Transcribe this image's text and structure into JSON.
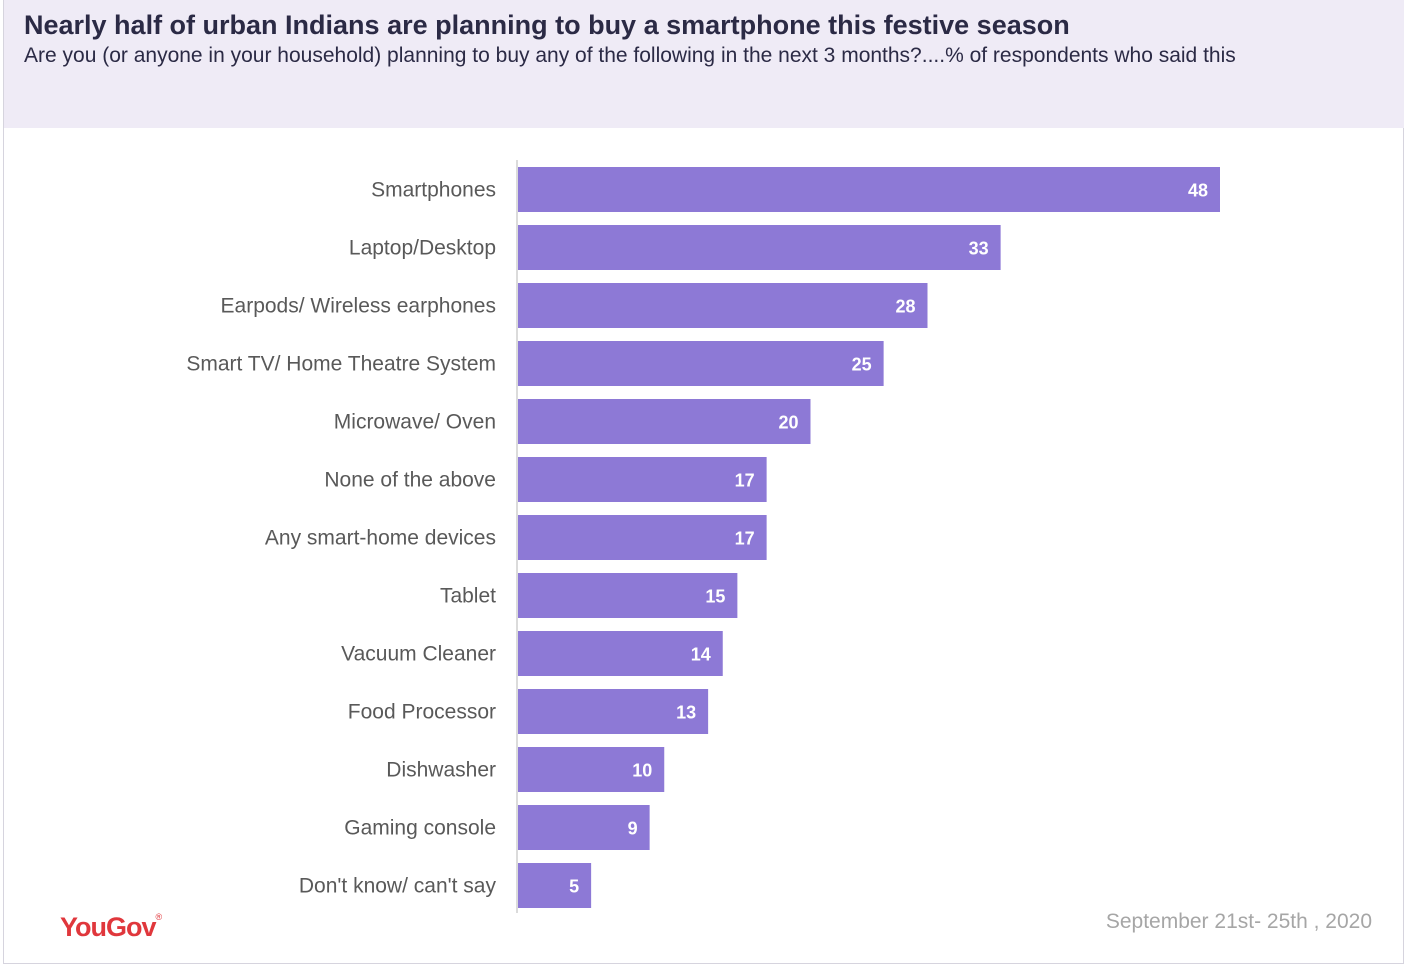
{
  "header": {
    "title": "Nearly half of urban Indians are planning to buy a smartphone this festive season",
    "subtitle": "Are you (or anyone in your household) planning to buy any of the following in the next 3 months?....% of respondents who said this"
  },
  "footer": {
    "logo_text": "YouGov",
    "date": "September 21st- 25th , 2020"
  },
  "colors": {
    "bar": "#8d79d6",
    "header_bg": "#efebf6",
    "logo": "#e0373c"
  },
  "chart_data": {
    "type": "bar",
    "orientation": "horizontal",
    "categories": [
      "Smartphones",
      "Laptop/Desktop",
      "Earpods/ Wireless earphones",
      "Smart TV/ Home Theatre System",
      "Microwave/ Oven",
      "None of the above",
      "Any smart-home devices",
      "Tablet",
      "Vacuum Cleaner",
      "Food Processor",
      "Dishwasher",
      "Gaming console",
      "Don't know/ can't say"
    ],
    "values": [
      48,
      33,
      28,
      25,
      20,
      17,
      17,
      15,
      14,
      13,
      10,
      9,
      5
    ],
    "xlim": [
      0,
      48
    ],
    "grid": false,
    "legend": "none",
    "data_labels": true
  }
}
